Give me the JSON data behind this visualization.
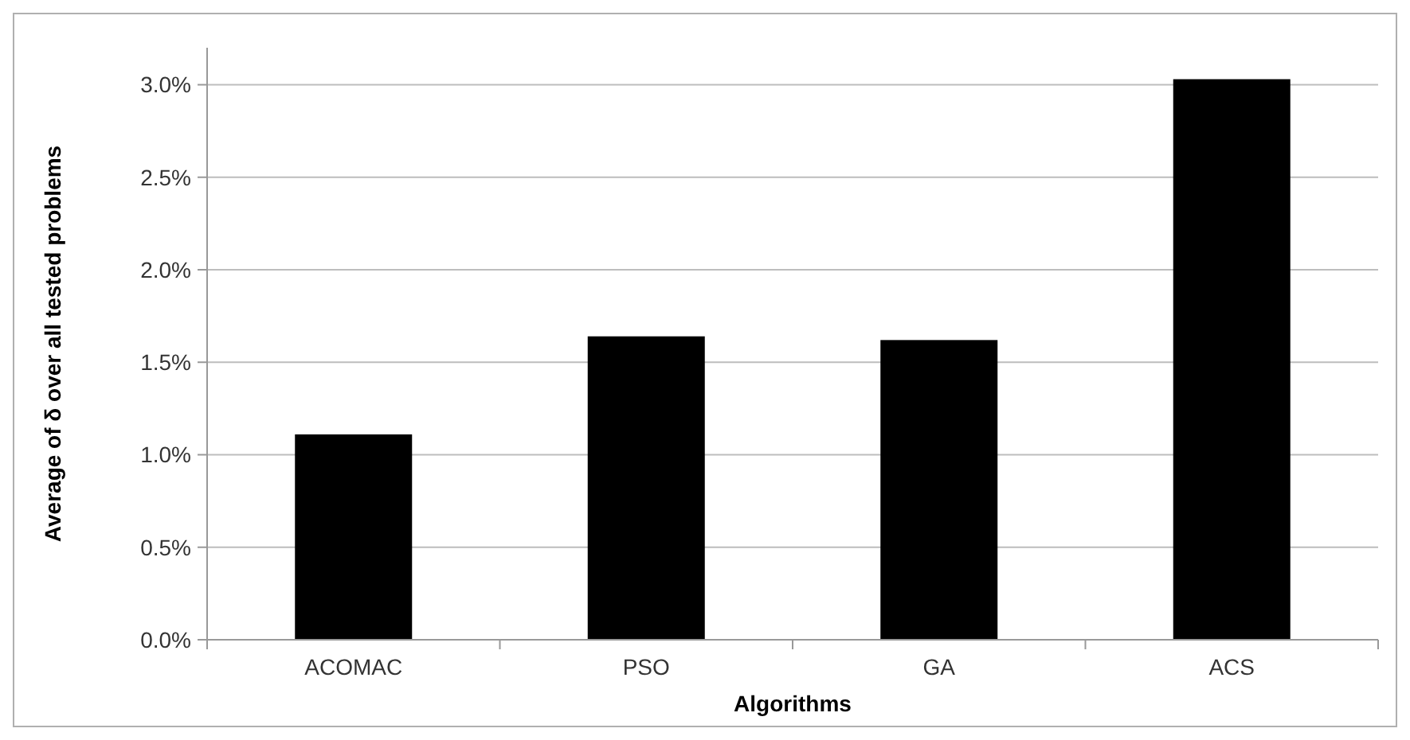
{
  "chart_data": {
    "type": "bar",
    "xlabel": "Algorithms",
    "ylabel": "Average of δ over all tested problems",
    "categories": [
      "ACOMAC",
      "PSO",
      "GA",
      "ACS"
    ],
    "values": [
      1.11,
      1.64,
      1.62,
      3.03
    ],
    "color": "#000000",
    "ylim": [
      0,
      3.2
    ],
    "yticks": [
      {
        "value": 0,
        "label": "0.0%"
      },
      {
        "value": 0.5,
        "label": "0.5%"
      },
      {
        "value": 1,
        "label": "1.0%"
      },
      {
        "value": 1.5,
        "label": "1.5%"
      },
      {
        "value": 2,
        "label": "2.0%"
      },
      {
        "value": 2.5,
        "label": "2.5%"
      },
      {
        "value": 3,
        "label": "3.0%"
      }
    ],
    "grid": "y"
  }
}
